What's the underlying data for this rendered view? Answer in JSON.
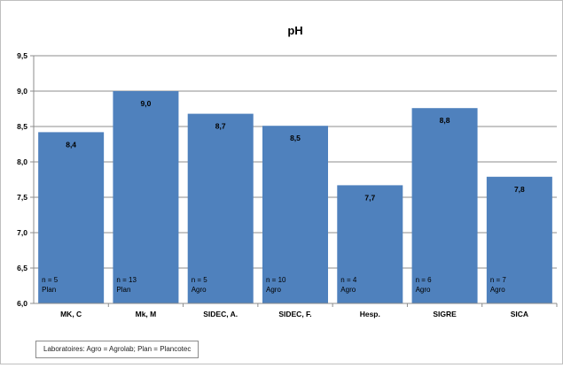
{
  "chart_data": {
    "type": "bar",
    "title": "pH",
    "categories": [
      "MK, C",
      "Mk, M",
      "SIDEC, A.",
      "SIDEC, F.",
      "Hesp.",
      "SIGRE",
      "SICA"
    ],
    "values": [
      8.42,
      9.0,
      8.68,
      8.51,
      7.67,
      8.76,
      7.79
    ],
    "data_labels": [
      "8,4",
      "9,0",
      "8,7",
      "8,5",
      "7,7",
      "8,8",
      "7,8"
    ],
    "bar_notes": [
      [
        "n = 5",
        "Plan"
      ],
      [
        "n = 13",
        "Plan"
      ],
      [
        "n = 5",
        "Agro"
      ],
      [
        "n = 10",
        "Agro"
      ],
      [
        "n = 4",
        "Agro"
      ],
      [
        "n = 6",
        "Agro"
      ],
      [
        "n = 7",
        "Agro"
      ]
    ],
    "ylim": [
      6.0,
      9.5
    ],
    "yticks": [
      "6,0",
      "6,5",
      "7,0",
      "7,5",
      "8,0",
      "8,5",
      "9,0",
      "9,5"
    ],
    "grid": true,
    "bar_color": "#4f81bd",
    "grid_color": "#8c8c8c"
  },
  "footnote": "Laboratoires: Agro = Agrolab; Plan = Plancotec"
}
